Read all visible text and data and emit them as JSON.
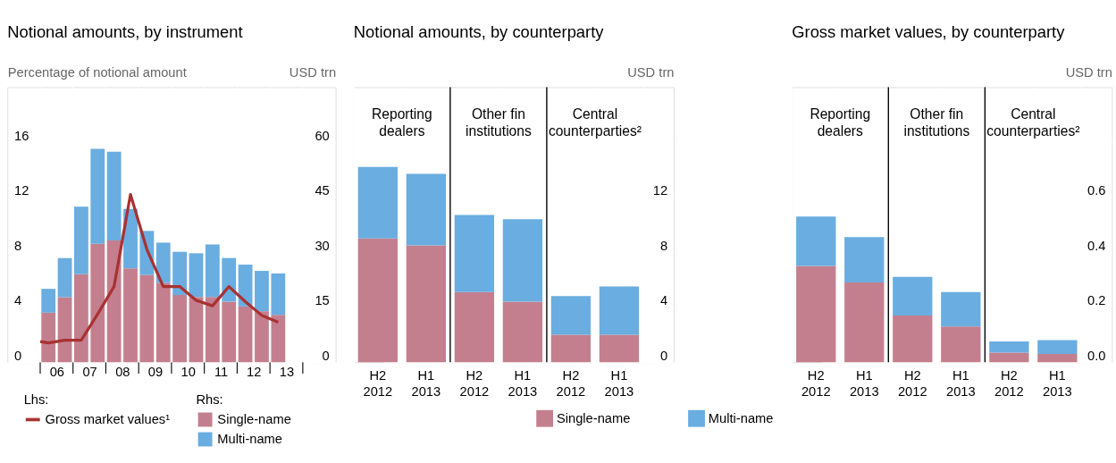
{
  "chart_data": [
    {
      "type": "bar",
      "title": "Notional amounts, by instrument",
      "ylabel": "Percentage of notional amount",
      "y2label": "USD trn",
      "stacked": true,
      "grid": true,
      "legend": "bottom",
      "annotations": [
        "Lhs:",
        "Rhs:"
      ],
      "xlim": [
        4.5,
        14.5
      ],
      "xticks": [
        {
          "value": 5.5,
          "label": null
        },
        {
          "value": 6,
          "label": "06"
        },
        {
          "value": 6.5,
          "label": null
        },
        {
          "value": 7,
          "label": "07"
        },
        {
          "value": 7.5,
          "label": null
        },
        {
          "value": 8,
          "label": "08"
        },
        {
          "value": 8.5,
          "label": null
        },
        {
          "value": 9,
          "label": "09"
        },
        {
          "value": 9.5,
          "label": null
        },
        {
          "value": 10,
          "label": "10"
        },
        {
          "value": 10.5,
          "label": null
        },
        {
          "value": 11,
          "label": "11"
        },
        {
          "value": 11.5,
          "label": null
        },
        {
          "value": 12,
          "label": "12"
        },
        {
          "value": 12.5,
          "label": null
        },
        {
          "value": 13,
          "label": "13"
        },
        {
          "value": 13.5,
          "label": null
        }
      ],
      "ylim": [
        0,
        20
      ],
      "yticks": [
        0,
        4,
        8,
        12,
        16
      ],
      "y2lim": [
        0,
        75
      ],
      "y2ticks": [
        0,
        15,
        30,
        45,
        60
      ],
      "series": [
        {
          "name": "Single-name",
          "type": "bar",
          "axis": "y2",
          "color": "#c47f8e",
          "x": [
            5.75,
            6.25,
            6.75,
            7.25,
            7.75,
            8.25,
            8.75,
            9.25,
            9.75,
            10.25,
            10.75,
            11.25,
            11.75,
            12.25,
            12.75
          ],
          "values": [
            13.5,
            17.7,
            24.0,
            32.3,
            33.2,
            25.6,
            23.8,
            21.6,
            18.3,
            17.8,
            17.8,
            16.5,
            15.2,
            13.9,
            12.9
          ]
        },
        {
          "name": "Multi-name",
          "type": "bar",
          "axis": "y2",
          "color": "#6aade0",
          "x": [
            5.75,
            6.25,
            6.75,
            7.25,
            7.75,
            8.25,
            8.75,
            9.25,
            9.75,
            10.25,
            10.75,
            11.25,
            11.75,
            12.25,
            12.75
          ],
          "values": [
            6.5,
            10.7,
            18.4,
            25.9,
            24.2,
            16.2,
            12.0,
            11.0,
            11.8,
            11.9,
            14.3,
            11.9,
            11.4,
            11.0,
            11.3
          ]
        },
        {
          "name": "Gross market values¹",
          "type": "line",
          "axis": "y",
          "color": "#a83232",
          "x": [
            5.5,
            5.75,
            6.25,
            6.75,
            7.25,
            7.75,
            8.25,
            8.75,
            9.25,
            9.75,
            10.25,
            10.75,
            11.25,
            11.75,
            12.25,
            12.75
          ],
          "values": [
            1.5,
            1.4,
            1.6,
            1.6,
            3.5,
            5.5,
            12.2,
            8.2,
            5.5,
            5.5,
            4.5,
            4.1,
            5.5,
            4.4,
            3.4,
            2.9
          ]
        }
      ]
    },
    {
      "type": "bar",
      "title": "Notional amounts, by counterparty",
      "ylabel": "USD trn",
      "stacked": true,
      "grid": true,
      "legend": "bottom",
      "annotations": [
        "Reporting dealers",
        "Other fin institutions",
        "Central counterparties²"
      ],
      "categories": [
        "H2 2012",
        "H1 2013",
        "H2 2012",
        "H1 2013",
        "H2 2012",
        "H1 2013"
      ],
      "ylim": [
        0,
        20
      ],
      "yticks": [
        0,
        4,
        8,
        12,
        {
          "value": 16,
          "label": null
        }
      ],
      "series": [
        {
          "name": "Single-name",
          "color": "#c47f8e",
          "values": [
            9.0,
            8.5,
            5.1,
            4.4,
            2.0,
            2.0
          ]
        },
        {
          "name": "Multi-name",
          "color": "#6aade0",
          "values": [
            5.2,
            5.2,
            5.6,
            6.0,
            2.8,
            3.5
          ]
        }
      ]
    },
    {
      "type": "bar",
      "title": "Gross market values, by counterparty",
      "ylabel": "USD trn",
      "stacked": true,
      "grid": true,
      "annotations": [
        "Reporting dealers",
        "Other fin institutions",
        "Central counterparties²"
      ],
      "categories": [
        "H2 2012",
        "H1 2013",
        "H2 2012",
        "H1 2013",
        "H2 2012",
        "H1 2013"
      ],
      "ylim": [
        0,
        1
      ],
      "yticks": [
        {
          "value": 0,
          "label": "0.0"
        },
        0.2,
        0.4,
        0.6,
        {
          "value": 0.8,
          "label": null
        }
      ],
      "series": [
        {
          "color": "#c47f8e",
          "values": [
            0.35,
            0.29,
            0.17,
            0.13,
            0.035,
            0.03
          ]
        },
        {
          "color": "#6aade0",
          "values": [
            0.18,
            0.165,
            0.14,
            0.125,
            0.04,
            0.05
          ]
        }
      ]
    }
  ]
}
